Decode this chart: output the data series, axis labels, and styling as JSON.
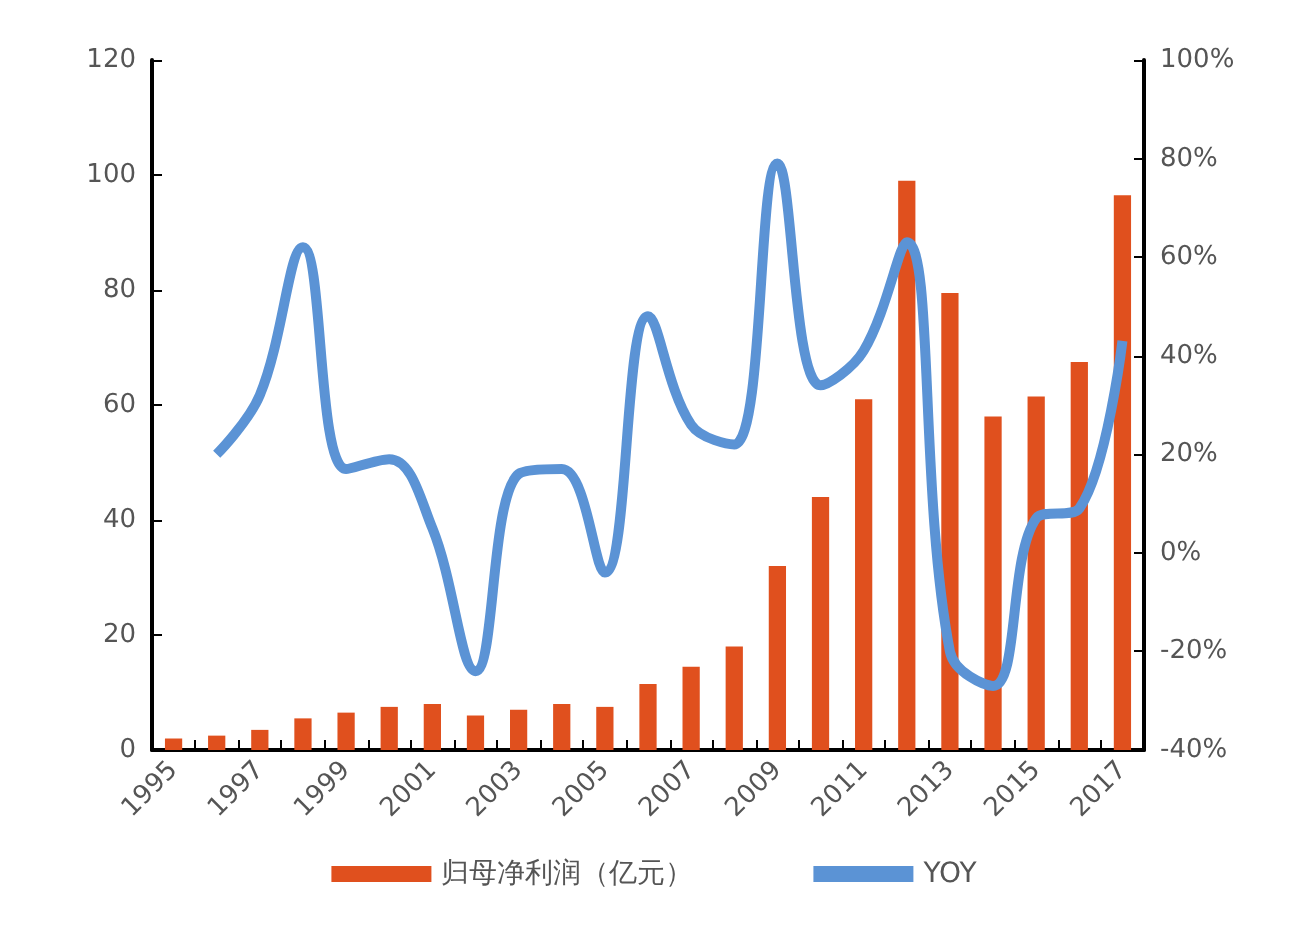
{
  "chart_data": {
    "type": "bar",
    "categories": [
      "1995",
      null,
      "1997",
      null,
      "1999",
      null,
      "2001",
      null,
      "2003",
      null,
      "2005",
      null,
      "2007",
      null,
      "2009",
      null,
      "2011",
      null,
      "2013",
      null,
      "2015",
      null,
      "2017"
    ],
    "series": [
      {
        "name": "归母净利润（亿元）",
        "color": "#e0501e",
        "values": [
          2,
          2.5,
          3.5,
          5.5,
          6.5,
          7.5,
          8,
          6,
          7,
          8,
          7.5,
          11.5,
          14.5,
          18,
          32,
          44,
          61,
          99,
          79.5,
          58,
          61.5,
          67.5,
          96.5
        ]
      },
      {
        "name": "YOY",
        "type": "line",
        "axis": "y2",
        "color": "#5b93d5",
        "values": [
          null,
          20,
          32,
          62,
          17,
          19,
          5,
          -24,
          16,
          17,
          -4,
          48,
          26,
          22,
          79,
          34,
          41,
          63,
          -20,
          -27,
          7,
          9,
          43
        ]
      }
    ],
    "ylim": [
      0,
      120
    ],
    "yticks": [
      0,
      20,
      40,
      60,
      80,
      100,
      120
    ],
    "y2lim": [
      -40,
      100
    ],
    "y2ticks": [
      {
        "value": -40,
        "label": "-40%"
      },
      {
        "value": -20,
        "label": "-20%"
      },
      {
        "value": 0,
        "label": "0%"
      },
      {
        "value": 20,
        "label": "20%"
      },
      {
        "value": 40,
        "label": "40%"
      },
      {
        "value": 60,
        "label": "60%"
      },
      {
        "value": 80,
        "label": "80%"
      },
      {
        "value": 100,
        "label": "100%"
      }
    ],
    "grid": false,
    "legend": "bottom",
    "marker": "none"
  }
}
